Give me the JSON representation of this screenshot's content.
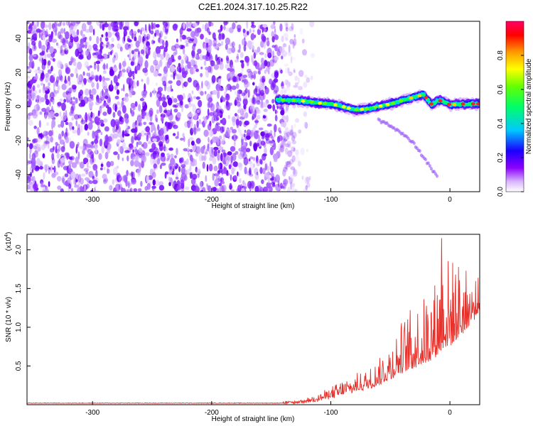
{
  "title": "C2E1.2024.317.10.25.R22",
  "chart_data": [
    {
      "type": "heatmap",
      "xlabel": "Height of straight line (km)",
      "ylabel": "Frequency (Hz)",
      "xlim": [
        -355,
        25
      ],
      "ylim": [
        -50,
        50
      ],
      "xticks": [
        "-300",
        "-200",
        "-100",
        "0"
      ],
      "yticks": [
        "-40",
        "-20",
        "0",
        "20",
        "40"
      ],
      "noise_region_x": [
        -355,
        -130
      ],
      "noise_color": "#7a14ff",
      "ridge": {
        "x": [
          -145,
          -130,
          -120,
          -110,
          -100,
          -90,
          -80,
          -70,
          -60,
          -50,
          -40,
          -30,
          -22,
          -15,
          -10,
          -5,
          0,
          10,
          25
        ],
        "y": [
          4,
          3.5,
          3,
          2,
          1.5,
          0,
          -2,
          -1.5,
          0,
          1.5,
          3.5,
          5.5,
          7,
          1,
          3.5,
          3,
          1,
          1.5,
          1.5
        ]
      },
      "secondary_branch": {
        "x": [
          -60,
          -50,
          -40,
          -30,
          -20,
          -10
        ],
        "y": [
          -8,
          -11,
          -16,
          -22,
          -32,
          -42
        ]
      },
      "colorbar": {
        "label": "Normalized spectral amplitude",
        "range": [
          0,
          1
        ],
        "ticks": [
          "0.0",
          "0.2",
          "0.4",
          "0.6",
          "0.8"
        ],
        "colors": [
          "#ffffff",
          "#8c00ff",
          "#0000ff",
          "#00e5ff",
          "#00ff00",
          "#ffff00",
          "#ff7f00",
          "#ff0000",
          "#ff0080"
        ]
      }
    },
    {
      "type": "line",
      "xlabel": "Height of straight line (km)",
      "ylabel": "SNR (10 * v/v)",
      "scale_note": "(x10",
      "scale_exp": "4",
      "scale_close": ")",
      "xlim": [
        -355,
        25
      ],
      "ylim": [
        0,
        2.2
      ],
      "xticks": [
        "-300",
        "-200",
        "-100",
        "0"
      ],
      "yticks": [
        "0.5",
        "1.0",
        "1.5",
        "2.0"
      ],
      "line_color": "#e8302a",
      "series": [
        {
          "x": [
            -355,
            -140,
            -130,
            -120,
            -110,
            -100,
            -90,
            -80,
            -70,
            -60,
            -50,
            -40,
            -30,
            -20,
            -10,
            -7,
            0,
            10,
            20,
            25
          ],
          "baseline": [
            0.02,
            0.02,
            0.025,
            0.04,
            0.06,
            0.09,
            0.13,
            0.17,
            0.21,
            0.26,
            0.33,
            0.42,
            0.48,
            0.55,
            0.65,
            0.75,
            0.75,
            0.9,
            1.1,
            1.2
          ],
          "peaks": [
            0.03,
            0.03,
            0.035,
            0.07,
            0.14,
            0.22,
            0.33,
            0.38,
            0.45,
            0.6,
            0.85,
            1.1,
            1.3,
            1.45,
            1.7,
            2.15,
            1.9,
            1.85,
            1.6,
            1.65
          ]
        }
      ]
    }
  ]
}
